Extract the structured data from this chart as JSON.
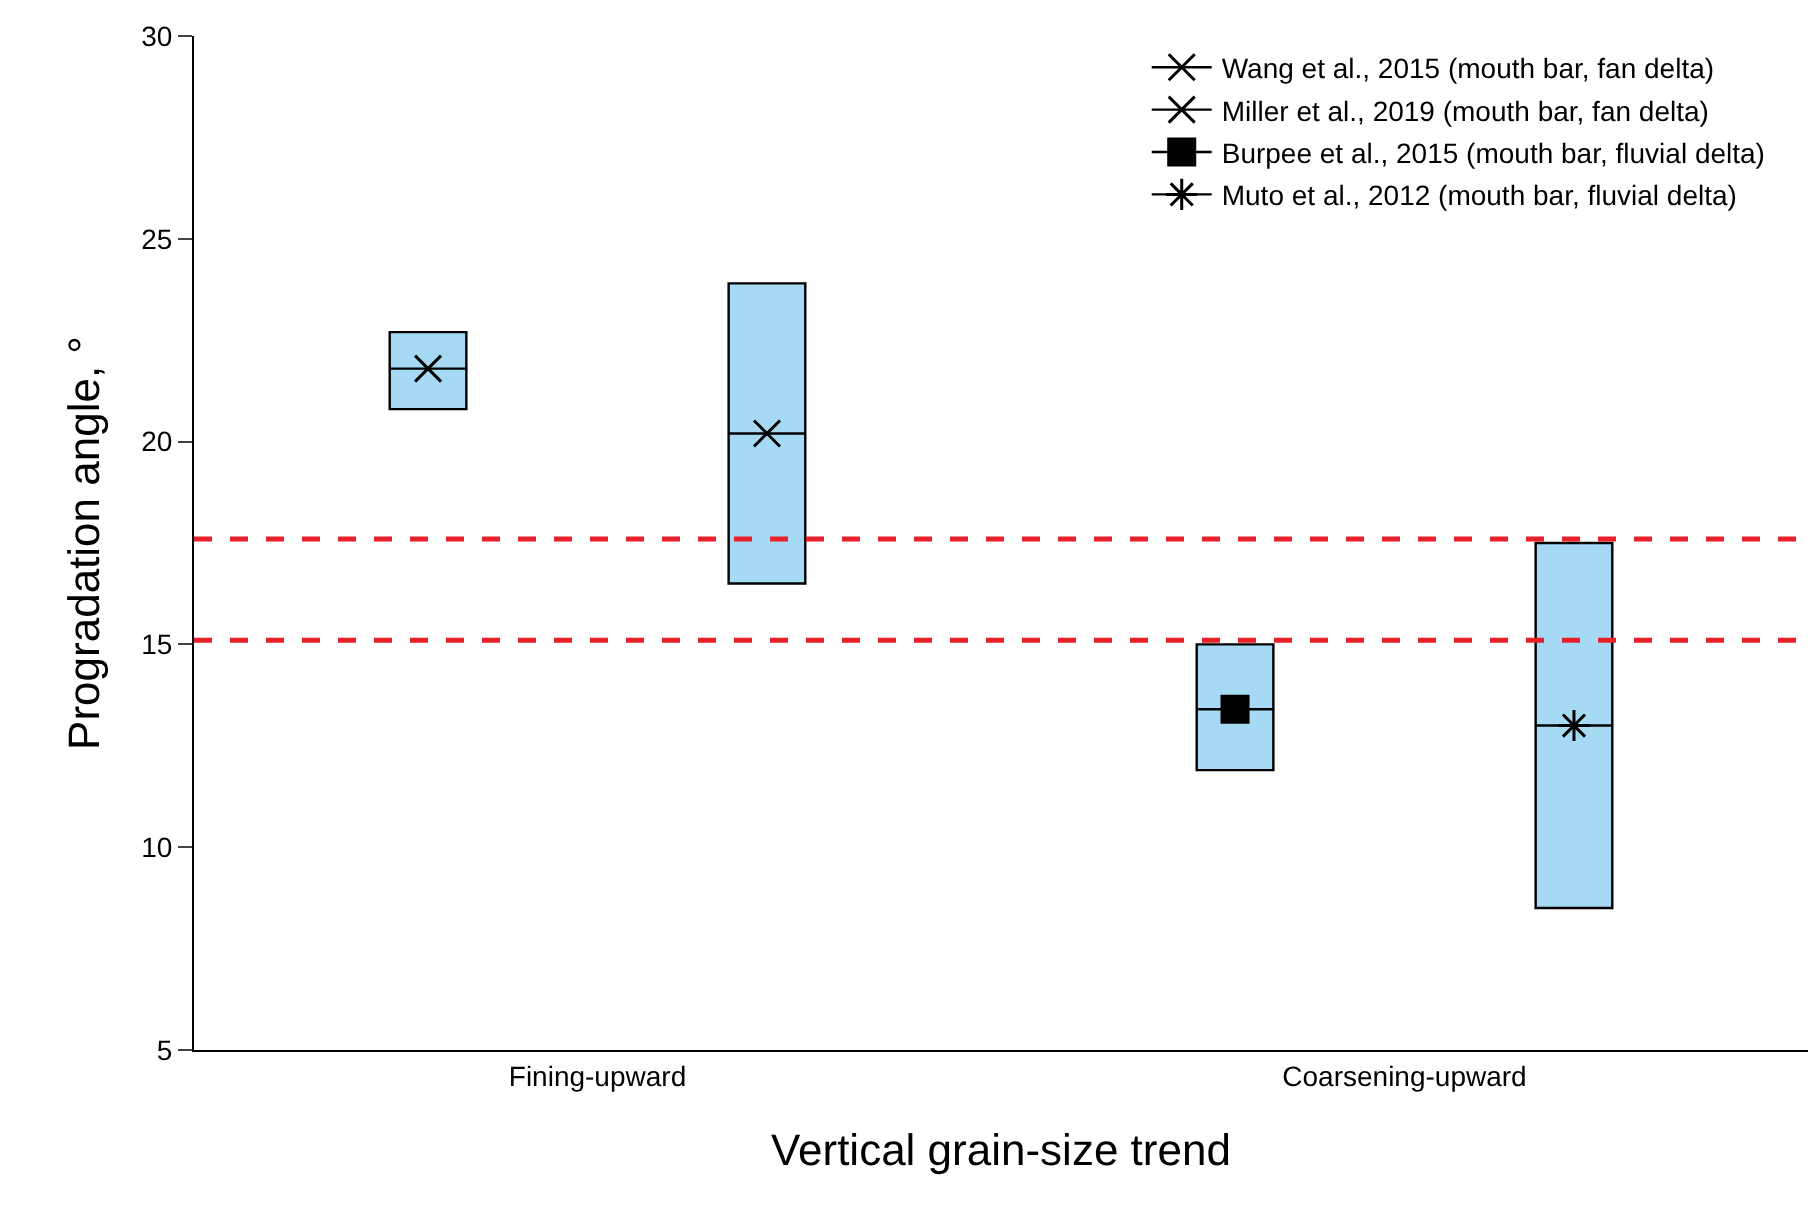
{
  "chart_data": {
    "type": "box",
    "xlabel": "Vertical grain-size trend",
    "ylabel": "Progradation angle, °",
    "categories": [
      "Fining-upward",
      "Coarsening-upward"
    ],
    "ylim": [
      5,
      30
    ],
    "yticks": [
      5,
      10,
      15,
      20,
      25,
      30
    ],
    "grid": false,
    "legend": "top right",
    "series": [
      {
        "name": "Wang et al., 2015 (mouth bar, fan delta)",
        "color": "#a6daf4",
        "marker": "cross",
        "boxes": [
          {
            "low": 20.8,
            "q1": 20.8,
            "median": 21.8,
            "q3": 22.7,
            "high": 22.7,
            "mean": 21.8
          },
          null
        ]
      },
      {
        "name": "Miller et al., 2019 (mouth bar, fan delta)",
        "color": "#a6daf4",
        "marker": "cross",
        "boxes": [
          {
            "low": 16.5,
            "q1": 16.5,
            "median": 20.2,
            "q3": 23.9,
            "high": 23.9,
            "mean": 20.2
          },
          null
        ]
      },
      {
        "name": "Burpee et al., 2015 (mouth bar, fluvial delta)",
        "color": "#a6daf4",
        "marker": "square",
        "boxes": [
          null,
          {
            "low": 11.9,
            "q1": 11.9,
            "median": 13.4,
            "q3": 15.0,
            "high": 15.0,
            "mean": 13.4
          }
        ]
      },
      {
        "name": "Muto et al., 2012 (mouth bar, fluvial delta)",
        "color": "#a6daf4",
        "marker": "star",
        "boxes": [
          null,
          {
            "low": 8.5,
            "q1": 8.5,
            "median": 13.0,
            "q3": 17.5,
            "high": 17.5,
            "mean": 13.0
          }
        ]
      }
    ],
    "ref_lines": [
      {
        "axis": "y",
        "value": 17.6,
        "color": "#e8202a",
        "line_style": "dashed"
      },
      {
        "axis": "y",
        "value": 15.1,
        "color": "#e8202a",
        "line_style": "dashed"
      }
    ]
  }
}
